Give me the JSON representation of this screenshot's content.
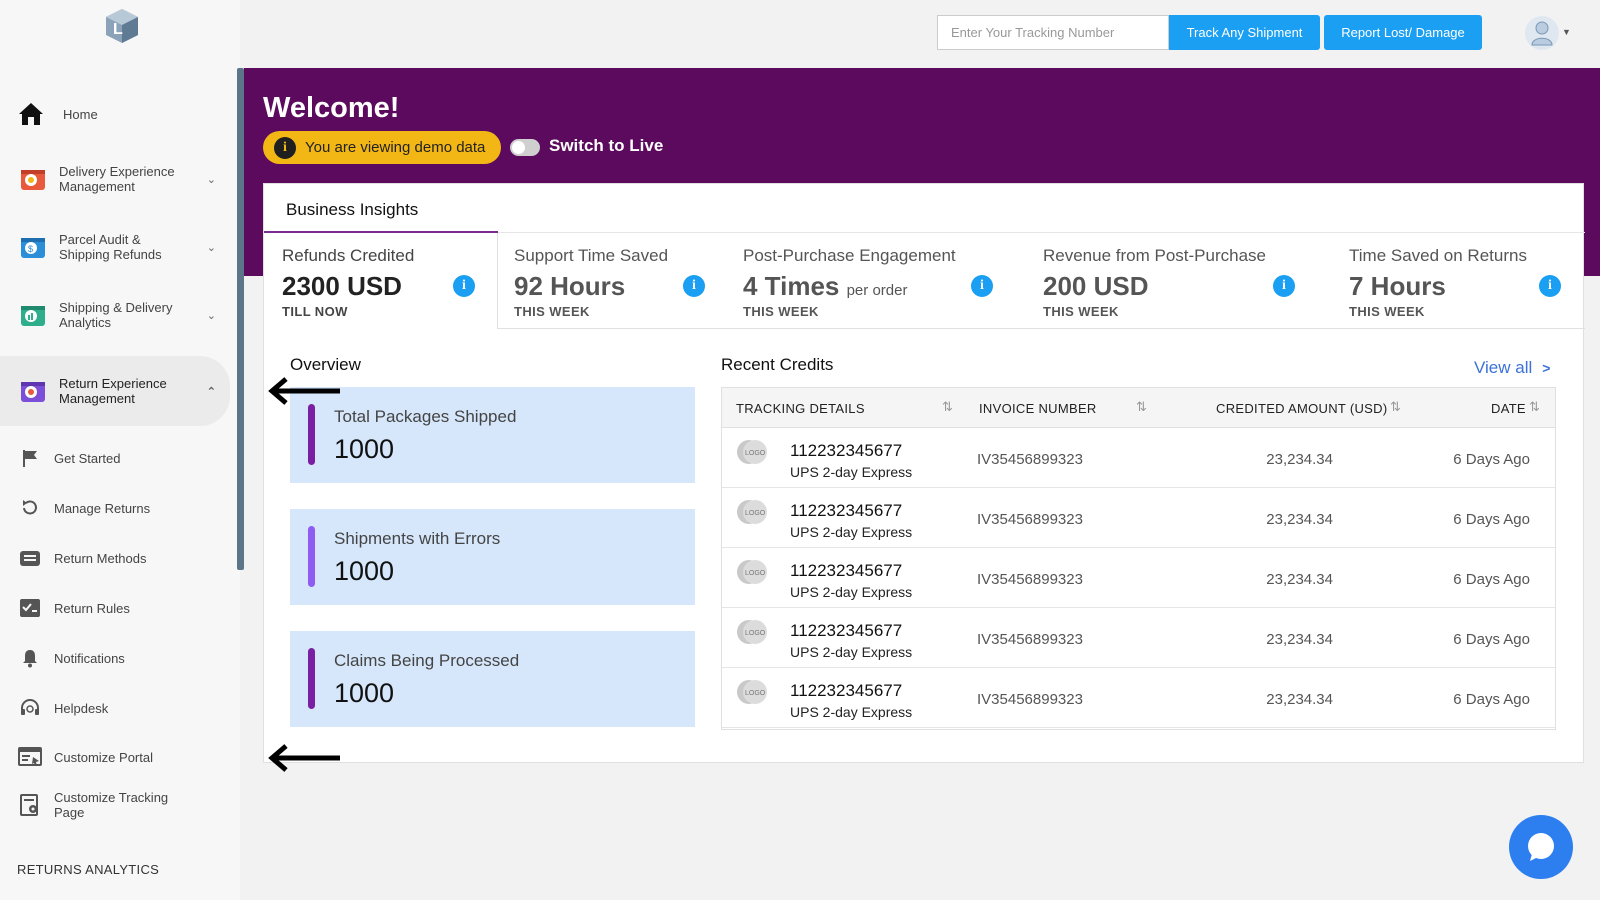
{
  "sidebar": {
    "nav": [
      {
        "label": "Home"
      },
      {
        "label": "Delivery Experience Management"
      },
      {
        "label": "Parcel Audit & Shipping Refunds"
      },
      {
        "label": "Shipping & Delivery Analytics"
      },
      {
        "label": "Return Experience Management"
      }
    ],
    "sub_items": [
      {
        "label": "Get Started"
      },
      {
        "label": "Manage Returns"
      },
      {
        "label": "Return Methods"
      },
      {
        "label": "Return Rules"
      },
      {
        "label": "Notifications"
      },
      {
        "label": "Helpdesk"
      },
      {
        "label": "Customize Portal"
      },
      {
        "label": "Customize Tracking Page"
      }
    ],
    "section_heading": "RETURNS ANALYTICS"
  },
  "topbar": {
    "tracking_placeholder": "Enter Your Tracking Number",
    "track_button": "Track Any Shipment",
    "report_button": "Report Lost/ Damage"
  },
  "banner": {
    "welcome": "Welcome!",
    "demo_notice": "You are viewing demo data",
    "switch_label": "Switch to Live"
  },
  "insights": {
    "tab_label": "Business Insights",
    "metrics": [
      {
        "title": "Refunds Credited",
        "value": "2300 USD",
        "suffix": "",
        "period": "TILL NOW"
      },
      {
        "title": "Support Time Saved",
        "value": "92 Hours",
        "suffix": "",
        "period": "THIS WEEK"
      },
      {
        "title": "Post-Purchase Engagement",
        "value": "4 Times",
        "suffix": "per order",
        "period": "THIS WEEK"
      },
      {
        "title": "Revenue from Post-Purchase",
        "value": "200 USD",
        "suffix": "",
        "period": "THIS WEEK"
      },
      {
        "title": "Time Saved on Returns",
        "value": "7 Hours",
        "suffix": "",
        "period": "THIS WEEK"
      }
    ]
  },
  "overview": {
    "heading": "Overview",
    "cards": [
      {
        "label": "Total Packages Shipped",
        "value": "1000",
        "color": "#7b1fa2"
      },
      {
        "label": "Shipments with Errors",
        "value": "1000",
        "color": "#8e5cf0"
      },
      {
        "label": "Claims Being Processed",
        "value": "1000",
        "color": "#7b1fa2"
      }
    ]
  },
  "recent_credits": {
    "heading": "Recent Credits",
    "view_all": "View all",
    "columns": [
      "TRACKING DETAILS",
      "INVOICE NUMBER",
      "CREDITED AMOUNT (USD)",
      "DATE"
    ],
    "rows": [
      {
        "logo": "LOGO",
        "tracking": "112232345677",
        "carrier": "UPS 2-day Express",
        "invoice": "IV35456899323",
        "amount": "23,234.34",
        "date": "6 Days Ago"
      },
      {
        "logo": "LOGO",
        "tracking": "112232345677",
        "carrier": "UPS 2-day Express",
        "invoice": "IV35456899323",
        "amount": "23,234.34",
        "date": "6 Days Ago"
      },
      {
        "logo": "LOGO",
        "tracking": "112232345677",
        "carrier": "UPS 2-day Express",
        "invoice": "IV35456899323",
        "amount": "23,234.34",
        "date": "6 Days Ago"
      },
      {
        "logo": "LOGO",
        "tracking": "112232345677",
        "carrier": "UPS 2-day Express",
        "invoice": "IV35456899323",
        "amount": "23,234.34",
        "date": "6 Days Ago"
      },
      {
        "logo": "LOGO",
        "tracking": "112232345677",
        "carrier": "UPS 2-day Express",
        "invoice": "IV35456899323",
        "amount": "23,234.34",
        "date": "6 Days Ago"
      }
    ]
  },
  "colors": {
    "banner": "#5c0a5e",
    "accent_blue": "#1b9ff2",
    "demo_pill": "#f3b715",
    "link": "#3b72d9",
    "overview_card_bg": "#d6e7fb"
  }
}
